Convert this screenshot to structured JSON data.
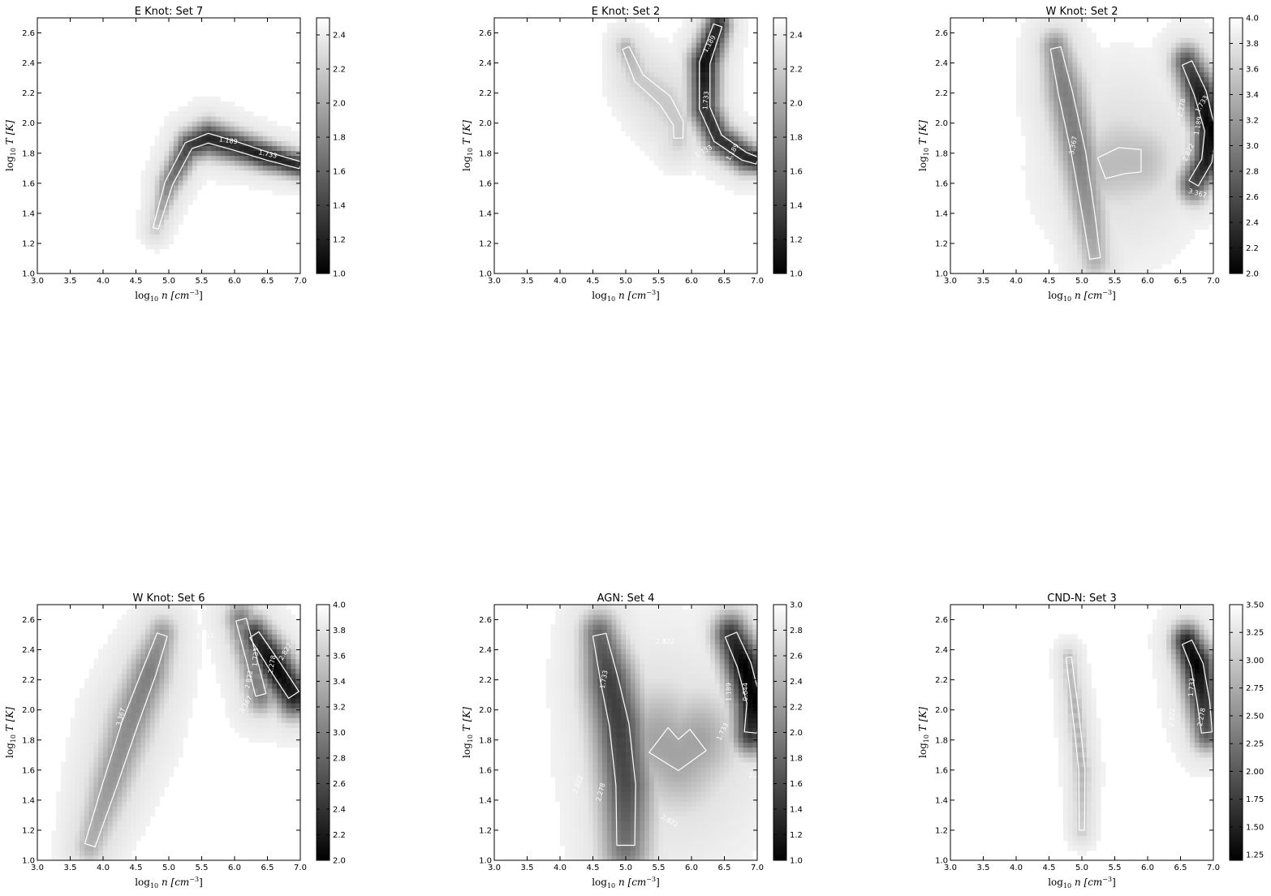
{
  "chart_data": [
    {
      "type": "heatmap",
      "title": "E Knot: Set 7",
      "xlabel_main": "log",
      "xlabel_sub": "10",
      "xlabel_rest": " n [cm",
      "xlabel_sup": "−3",
      "xlabel_end": "]",
      "ylabel_main": "log",
      "ylabel_sub": "10",
      "ylabel_rest": " T [K]",
      "xlim": [
        3.0,
        7.0
      ],
      "ylim": [
        1.0,
        2.7
      ],
      "xticks": [
        "3.0",
        "3.5",
        "4.0",
        "4.5",
        "5.0",
        "5.5",
        "6.0",
        "6.5",
        "7.0"
      ],
      "yticks": [
        "1.0",
        "1.2",
        "1.4",
        "1.6",
        "1.8",
        "2.0",
        "2.2",
        "2.4",
        "2.6"
      ],
      "colorbar_range": [
        1.0,
        2.5
      ],
      "colorbar_ticks": [
        "1.0",
        "1.2",
        "1.4",
        "1.6",
        "1.8",
        "2.0",
        "2.2",
        "2.4"
      ],
      "contour_labels": [
        {
          "text": "1.189",
          "x": 5.9,
          "y": 1.87,
          "rot": 8
        },
        {
          "text": "1.733",
          "x": 6.5,
          "y": 1.78,
          "rot": 12
        }
      ],
      "blobs": [
        {
          "xs": [
            4.8,
            5.0,
            5.3,
            5.6,
            6.0,
            6.5,
            7.0
          ],
          "ys": [
            1.3,
            1.6,
            1.85,
            1.9,
            1.85,
            1.78,
            1.72
          ],
          "w": [
            0.06,
            0.09,
            0.1,
            0.11,
            0.1,
            0.09,
            0.08
          ],
          "v": [
            0.2,
            0.5,
            0.75,
            0.85,
            0.85,
            0.9,
            0.85
          ]
        }
      ]
    },
    {
      "type": "heatmap",
      "title": "E Knot: Set 2",
      "xlabel_main": "log",
      "xlabel_sub": "10",
      "xlabel_rest": " n [cm",
      "xlabel_sup": "−3",
      "xlabel_end": "]",
      "ylabel_main": "log",
      "ylabel_sub": "10",
      "ylabel_rest": " T [K]",
      "xlim": [
        3.0,
        7.0
      ],
      "ylim": [
        1.0,
        2.7
      ],
      "xticks": [
        "3.0",
        "3.5",
        "4.0",
        "4.5",
        "5.0",
        "5.5",
        "6.0",
        "6.5",
        "7.0"
      ],
      "yticks": [
        "1.0",
        "1.2",
        "1.4",
        "1.6",
        "1.8",
        "2.0",
        "2.2",
        "2.4",
        "2.6"
      ],
      "colorbar_range": [
        1.0,
        2.5
      ],
      "colorbar_ticks": [
        "1.0",
        "1.2",
        "1.4",
        "1.6",
        "1.8",
        "2.0",
        "2.2",
        "2.4"
      ],
      "contour_labels": [
        {
          "text": "1.189",
          "x": 6.3,
          "y": 2.52,
          "rot": -60
        },
        {
          "text": "1.733",
          "x": 6.25,
          "y": 2.15,
          "rot": -85
        },
        {
          "text": "1.733",
          "x": 6.2,
          "y": 1.8,
          "rot": -30
        },
        {
          "text": "1.189",
          "x": 6.65,
          "y": 1.8,
          "rot": -60
        }
      ],
      "blobs": [
        {
          "xs": [
            6.4,
            6.2,
            6.2,
            6.4,
            6.8,
            7.0
          ],
          "ys": [
            2.65,
            2.4,
            2.1,
            1.9,
            1.78,
            1.75
          ],
          "w": [
            0.1,
            0.12,
            0.12,
            0.11,
            0.1,
            0.08
          ],
          "v": [
            0.85,
            0.95,
            0.8,
            0.8,
            0.85,
            0.85
          ]
        },
        {
          "xs": [
            5.0,
            5.2,
            5.6,
            5.8,
            5.8
          ],
          "ys": [
            2.5,
            2.3,
            2.15,
            2.0,
            1.9
          ],
          "w": [
            0.08,
            0.12,
            0.15,
            0.12,
            0.1
          ],
          "v": [
            0.3,
            0.2,
            0.2,
            0.2,
            0.2
          ]
        }
      ]
    },
    {
      "type": "heatmap",
      "title": "W Knot: Set 2",
      "xlabel_main": "log",
      "xlabel_sub": "10",
      "xlabel_rest": " n [cm",
      "xlabel_sup": "−3",
      "xlabel_end": "]",
      "ylabel_main": "log",
      "ylabel_sub": "10",
      "ylabel_rest": " T [K]",
      "xlim": [
        3.0,
        7.0
      ],
      "ylim": [
        1.0,
        2.7
      ],
      "xticks": [
        "3.0",
        "3.5",
        "4.0",
        "4.5",
        "5.0",
        "5.5",
        "6.0",
        "6.5",
        "7.0"
      ],
      "yticks": [
        "1.0",
        "1.2",
        "1.4",
        "1.6",
        "1.8",
        "2.0",
        "2.2",
        "2.4",
        "2.6"
      ],
      "colorbar_range": [
        2.0,
        4.0
      ],
      "colorbar_ticks": [
        "2.0",
        "2.2",
        "2.4",
        "2.6",
        "2.8",
        "3.0",
        "3.2",
        "3.4",
        "3.6",
        "3.8",
        "4.0"
      ],
      "contour_labels": [
        {
          "text": "3.367",
          "x": 4.9,
          "y": 1.85,
          "rot": -80
        },
        {
          "text": "2.278",
          "x": 6.55,
          "y": 2.1,
          "rot": -80
        },
        {
          "text": "1.189",
          "x": 6.8,
          "y": 1.98,
          "rot": -80
        },
        {
          "text": "1.733",
          "x": 6.85,
          "y": 2.12,
          "rot": -60
        },
        {
          "text": "2.822",
          "x": 6.65,
          "y": 1.8,
          "rot": -65
        },
        {
          "text": "3.367",
          "x": 6.75,
          "y": 1.52,
          "rot": 15
        }
      ],
      "blobs": [
        {
          "xs": [
            4.6,
            4.75,
            4.95,
            5.1,
            5.2
          ],
          "ys": [
            2.5,
            2.2,
            1.8,
            1.4,
            1.1
          ],
          "w": [
            0.12,
            0.16,
            0.16,
            0.14,
            0.12
          ],
          "v": [
            0.45,
            0.5,
            0.5,
            0.4,
            0.3
          ]
        },
        {
          "xs": [
            6.6,
            6.8,
            6.95,
            6.9,
            6.7
          ],
          "ys": [
            2.4,
            2.2,
            1.95,
            1.75,
            1.6
          ],
          "w": [
            0.12,
            0.14,
            0.12,
            0.12,
            0.12
          ],
          "v": [
            0.7,
            0.9,
            1.0,
            0.9,
            0.7
          ]
        },
        {
          "xs": [
            5.3,
            5.6,
            5.9
          ],
          "ys": [
            1.7,
            1.75,
            1.75
          ],
          "w": [
            0.25,
            0.3,
            0.25
          ],
          "v": [
            0.25,
            0.25,
            0.25
          ]
        }
      ]
    },
    {
      "type": "heatmap",
      "title": "W Knot: Set 6",
      "xlabel_main": "log",
      "xlabel_sub": "10",
      "xlabel_rest": " n [cm",
      "xlabel_sup": "−3",
      "xlabel_end": "]",
      "ylabel_main": "log",
      "ylabel_sub": "10",
      "ylabel_rest": " T [K]",
      "xlim": [
        3.0,
        7.0
      ],
      "ylim": [
        1.0,
        2.7
      ],
      "xticks": [
        "3.0",
        "3.5",
        "4.0",
        "4.5",
        "5.0",
        "5.5",
        "6.0",
        "6.5",
        "7.0"
      ],
      "yticks": [
        "1.0",
        "1.2",
        "1.4",
        "1.6",
        "1.8",
        "2.0",
        "2.2",
        "2.4",
        "2.6"
      ],
      "colorbar_range": [
        2.0,
        4.0
      ],
      "colorbar_ticks": [
        "2.0",
        "2.2",
        "2.4",
        "2.6",
        "2.8",
        "3.0",
        "3.2",
        "3.4",
        "3.6",
        "3.8",
        "4.0"
      ],
      "contour_labels": [
        {
          "text": "3.367",
          "x": 4.3,
          "y": 1.95,
          "rot": -75
        },
        {
          "text": "3.911",
          "x": 5.55,
          "y": 2.48,
          "rot": 0
        },
        {
          "text": "1.733",
          "x": 6.35,
          "y": 2.35,
          "rot": -85
        },
        {
          "text": "2.278",
          "x": 6.6,
          "y": 2.3,
          "rot": -80
        },
        {
          "text": "2.822",
          "x": 6.8,
          "y": 2.38,
          "rot": -60
        },
        {
          "text": "2.822",
          "x": 6.25,
          "y": 2.2,
          "rot": -80
        },
        {
          "text": "3.367",
          "x": 6.2,
          "y": 2.03,
          "rot": -60
        }
      ],
      "blobs": [
        {
          "xs": [
            3.8,
            4.1,
            4.4,
            4.7,
            4.9
          ],
          "ys": [
            1.1,
            1.5,
            1.9,
            2.25,
            2.5
          ],
          "w": [
            0.12,
            0.16,
            0.18,
            0.16,
            0.12
          ],
          "v": [
            0.3,
            0.4,
            0.45,
            0.5,
            0.4
          ]
        },
        {
          "xs": [
            6.3,
            6.6,
            6.9
          ],
          "ys": [
            2.5,
            2.3,
            2.1
          ],
          "w": [
            0.12,
            0.14,
            0.14
          ],
          "v": [
            0.8,
            1.0,
            0.9
          ]
        },
        {
          "xs": [
            6.1,
            6.4
          ],
          "ys": [
            2.6,
            2.1
          ],
          "w": [
            0.12,
            0.12
          ],
          "v": [
            0.5,
            0.5
          ]
        }
      ]
    },
    {
      "type": "heatmap",
      "title": "AGN: Set 4",
      "xlabel_main": "log",
      "xlabel_sub": "10",
      "xlabel_rest": " n [cm",
      "xlabel_sup": "−3",
      "xlabel_end": "]",
      "ylabel_main": "log",
      "ylabel_sub": "10",
      "ylabel_rest": " T [K]",
      "xlim": [
        3.0,
        7.0
      ],
      "ylim": [
        1.0,
        2.7
      ],
      "xticks": [
        "3.0",
        "3.5",
        "4.0",
        "4.5",
        "5.0",
        "5.5",
        "6.0",
        "6.5",
        "7.0"
      ],
      "yticks": [
        "1.0",
        "1.2",
        "1.4",
        "1.6",
        "1.8",
        "2.0",
        "2.2",
        "2.4",
        "2.6"
      ],
      "colorbar_range": [
        1.0,
        3.0
      ],
      "colorbar_ticks": [
        "1.0",
        "1.2",
        "1.4",
        "1.6",
        "1.8",
        "2.0",
        "2.2",
        "2.4",
        "2.6",
        "2.8",
        "3.0"
      ],
      "contour_labels": [
        {
          "text": "2.822",
          "x": 5.6,
          "y": 2.44,
          "rot": 0
        },
        {
          "text": "1.733",
          "x": 4.7,
          "y": 2.2,
          "rot": -80
        },
        {
          "text": "1.189",
          "x": 6.6,
          "y": 2.12,
          "rot": -90
        },
        {
          "text": "0.644",
          "x": 6.85,
          "y": 2.12,
          "rot": -90
        },
        {
          "text": "1.733",
          "x": 6.5,
          "y": 1.85,
          "rot": -65
        },
        {
          "text": "2.278",
          "x": 4.65,
          "y": 1.45,
          "rot": -75
        },
        {
          "text": "2.822",
          "x": 4.3,
          "y": 1.5,
          "rot": -70
        },
        {
          "text": "2.822",
          "x": 5.65,
          "y": 1.25,
          "rot": 30
        },
        {
          "text": "2.2",
          "x": 6.95,
          "y": 1.55,
          "rot": 0
        }
      ],
      "blobs": [
        {
          "xs": [
            4.6,
            4.75,
            4.9,
            5.0,
            5.0
          ],
          "ys": [
            2.5,
            2.2,
            1.9,
            1.5,
            1.1
          ],
          "w": [
            0.15,
            0.2,
            0.22,
            0.22,
            0.2
          ],
          "v": [
            0.6,
            0.75,
            0.75,
            0.7,
            0.55
          ]
        },
        {
          "xs": [
            6.6,
            6.8,
            6.95,
            6.9
          ],
          "ys": [
            2.5,
            2.3,
            2.05,
            1.85
          ],
          "w": [
            0.14,
            0.16,
            0.16,
            0.14
          ],
          "v": [
            0.8,
            1.0,
            1.0,
            0.8
          ]
        },
        {
          "xs": [
            5.5,
            5.8,
            6.1
          ],
          "ys": [
            1.8,
            1.7,
            1.8
          ],
          "w": [
            0.35,
            0.35,
            0.3
          ],
          "v": [
            0.35,
            0.35,
            0.35
          ]
        }
      ]
    },
    {
      "type": "heatmap",
      "title": "CND-N: Set 3",
      "xlabel_main": "log",
      "xlabel_sub": "10",
      "xlabel_rest": " n [cm",
      "xlabel_sup": "−3",
      "xlabel_end": "]",
      "ylabel_main": "log",
      "ylabel_sub": "10",
      "ylabel_rest": " T [K]",
      "xlim": [
        3.0,
        7.0
      ],
      "ylim": [
        1.0,
        2.7
      ],
      "xticks": [
        "3.0",
        "3.5",
        "4.0",
        "4.5",
        "5.0",
        "5.5",
        "6.0",
        "6.5",
        "7.0"
      ],
      "yticks": [
        "1.0",
        "1.2",
        "1.4",
        "1.6",
        "1.8",
        "2.0",
        "2.2",
        "2.4",
        "2.6"
      ],
      "colorbar_range": [
        1.2,
        3.5
      ],
      "colorbar_ticks": [
        "1.25",
        "1.50",
        "1.75",
        "2.00",
        "2.25",
        "2.50",
        "2.75",
        "3.00",
        "3.25",
        "3.50"
      ],
      "contour_labels": [
        {
          "text": "1.733",
          "x": 6.7,
          "y": 2.15,
          "rot": -85
        },
        {
          "text": "2.278",
          "x": 6.85,
          "y": 1.95,
          "rot": -80
        },
        {
          "text": "2.822",
          "x": 6.4,
          "y": 1.95,
          "rot": -85
        }
      ],
      "blobs": [
        {
          "xs": [
            6.6,
            6.75,
            6.85,
            6.9
          ],
          "ys": [
            2.45,
            2.3,
            2.05,
            1.85
          ],
          "w": [
            0.12,
            0.14,
            0.14,
            0.12
          ],
          "v": [
            0.9,
            1.0,
            0.8,
            0.65
          ]
        },
        {
          "xs": [
            4.8,
            4.9,
            5.0,
            5.0
          ],
          "ys": [
            2.35,
            2.0,
            1.6,
            1.2
          ],
          "w": [
            0.06,
            0.07,
            0.07,
            0.06
          ],
          "v": [
            0.25,
            0.3,
            0.3,
            0.2
          ]
        }
      ]
    }
  ]
}
